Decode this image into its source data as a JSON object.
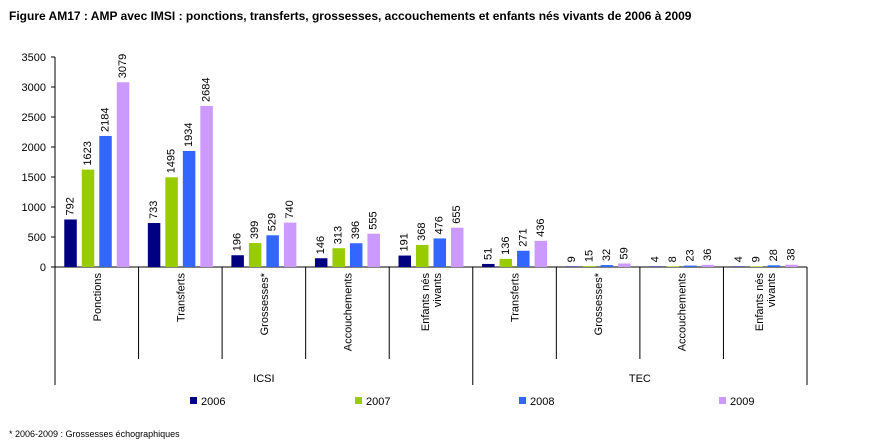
{
  "title": "Figure AM17 : AMP avec IMSI : ponctions, transferts, grossesses, accouchements et enfants nés vivants de 2006 à 2009",
  "footnote": "* 2006-2009 : Grossesses échographiques",
  "chart_data": {
    "type": "bar",
    "title": "Figure AM17 : AMP avec IMSI : ponctions, transferts, grossesses, accouchements et enfants nés vivants de 2006 à 2009",
    "xlabel": "",
    "ylabel": "",
    "ylim": [
      0,
      3500
    ],
    "yticks": [
      0,
      500,
      1000,
      1500,
      2000,
      2500,
      3000,
      3500
    ],
    "grid": false,
    "legend_position": "bottom",
    "groups": [
      {
        "label": "ICSI",
        "categories": [
          "Ponctions",
          "Transferts",
          "Grossesses*",
          "Accouchements",
          "Enfants nés vivants"
        ]
      },
      {
        "label": "TEC",
        "categories": [
          "Transferts",
          "Grossesses*",
          "Accouchements",
          "Enfants nés vivants"
        ]
      }
    ],
    "categories": [
      "Ponctions",
      "Transferts",
      "Grossesses*",
      "Accouchements",
      "Enfants nés vivants",
      "Transferts",
      "Grossesses*",
      "Accouchements",
      "Enfants nés vivants"
    ],
    "series": [
      {
        "name": "2006",
        "color": "#000080",
        "values": [
          792,
          733,
          196,
          146,
          191,
          51,
          9,
          4,
          4
        ]
      },
      {
        "name": "2007",
        "color": "#99CC00",
        "values": [
          1623,
          1495,
          399,
          313,
          368,
          136,
          15,
          8,
          9
        ]
      },
      {
        "name": "2008",
        "color": "#3366FF",
        "values": [
          2184,
          1934,
          529,
          396,
          476,
          271,
          32,
          23,
          28
        ]
      },
      {
        "name": "2009",
        "color": "#CC99FF",
        "values": [
          3079,
          2684,
          740,
          555,
          655,
          436,
          59,
          36,
          38
        ]
      }
    ]
  }
}
